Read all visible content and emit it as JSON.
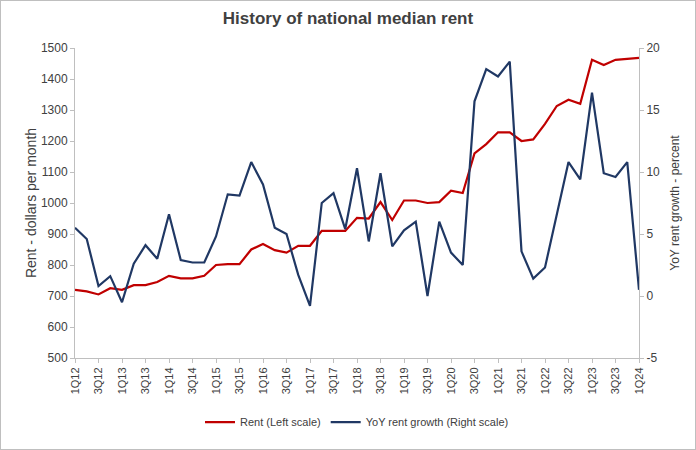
{
  "chart_data": {
    "type": "line",
    "title": "History of national median rent",
    "y_label": "Rent - dollars per month",
    "y2_label": "YoY rent growth - percent",
    "categories": [
      "1Q12",
      null,
      "3Q12",
      null,
      "1Q13",
      null,
      "3Q13",
      null,
      "1Q14",
      null,
      "3Q14",
      null,
      "1Q15",
      null,
      "3Q15",
      null,
      "1Q16",
      null,
      "3Q16",
      null,
      "1Q17",
      null,
      "3Q17",
      null,
      "1Q18",
      null,
      "3Q18",
      null,
      "1Q19",
      null,
      "3Q19",
      null,
      "1Q20",
      null,
      "3Q20",
      null,
      "1Q21",
      null,
      "3Q21",
      null,
      "1Q22",
      null,
      "3Q22",
      null,
      "1Q23",
      null,
      "3Q23",
      null,
      "1Q24"
    ],
    "series": [
      {
        "name": "Rent (Left scale)",
        "color": "#c00000",
        "axis": "y",
        "values": [
          720,
          715,
          705,
          725,
          720,
          735,
          735,
          745,
          765,
          757,
          757,
          765,
          800,
          803,
          803,
          850,
          868,
          848,
          840,
          862,
          862,
          910,
          910,
          910,
          952,
          950,
          1003,
          945,
          1008,
          1008,
          1000,
          1003,
          1040,
          1032,
          1160,
          1190,
          1228,
          1228,
          1200,
          1205,
          1255,
          1313,
          1333,
          1320,
          1462,
          1445,
          1462,
          1465,
          1468
        ]
      },
      {
        "name": "YoY rent growth (Right scale)",
        "color": "#203864",
        "axis": "y2",
        "values": [
          5.5,
          4.6,
          0.8,
          1.6,
          -0.5,
          2.6,
          4.1,
          3.0,
          6.6,
          2.9,
          2.7,
          2.7,
          4.8,
          8.2,
          8.1,
          10.8,
          9.0,
          5.5,
          5.0,
          1.7,
          -0.8,
          7.5,
          8.3,
          5.4,
          10.3,
          4.4,
          9.9,
          4.0,
          5.3,
          6.0,
          0.0,
          6.0,
          3.5,
          2.5,
          15.7,
          18.3,
          17.7,
          18.9,
          3.6,
          1.4,
          2.3,
          6.6,
          10.8,
          9.4,
          16.4,
          9.9,
          9.6,
          10.8,
          0.5
        ]
      }
    ],
    "ylim": [
      500,
      1500
    ],
    "yticks": [
      500,
      600,
      700,
      800,
      900,
      1000,
      1100,
      1200,
      1300,
      1400,
      1500
    ],
    "y2lim": [
      -5,
      20
    ],
    "y2ticks": [
      -5,
      0,
      5,
      10,
      15,
      20
    ],
    "grid": false,
    "legend": "bottom"
  }
}
